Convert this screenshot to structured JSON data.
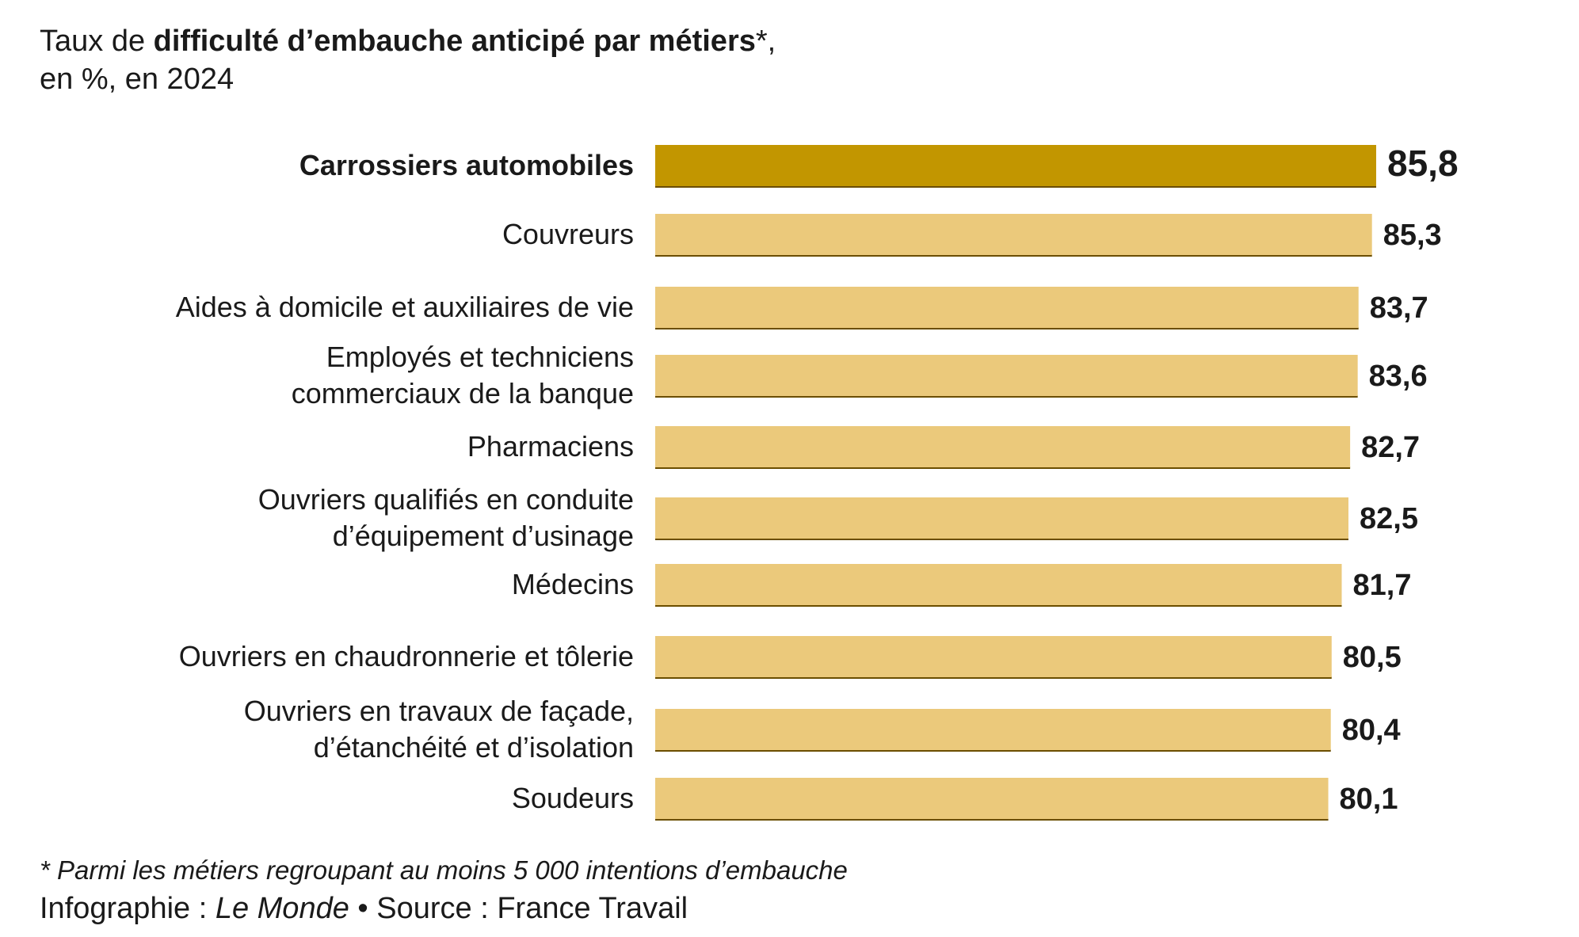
{
  "title": {
    "prefix": "Taux de ",
    "bold": "difficulté d’embauche anticipé par métiers",
    "suffix": "*,"
  },
  "subtitle": "en %, en 2024",
  "colors": {
    "highlight": "#c29600",
    "bar": "#ebc97b",
    "shadow": "#6b4e00"
  },
  "chart_data": {
    "type": "bar",
    "orientation": "horizontal",
    "highlight_index": 0,
    "categories": [
      [
        "Carrossiers automobiles"
      ],
      [
        "Couvreurs"
      ],
      [
        "Aides à domicile et auxiliaires de vie"
      ],
      [
        "Employés et techniciens",
        "commerciaux de la banque"
      ],
      [
        "Pharmaciens"
      ],
      [
        "Ouvriers qualifiés en conduite",
        "d’équipement d’usinage"
      ],
      [
        "Médecins"
      ],
      [
        "Ouvriers en chaudronnerie et tôlerie"
      ],
      [
        "Ouvriers en travaux de façade,",
        "d’étanchéité et d’isolation"
      ],
      [
        "Soudeurs"
      ]
    ],
    "values": [
      85.8,
      85.3,
      83.7,
      83.6,
      82.7,
      82.5,
      81.7,
      80.5,
      80.4,
      80.1
    ],
    "value_labels": [
      "85,8",
      "85,3",
      "83,7",
      "83,6",
      "82,7",
      "82,5",
      "81,7",
      "80,5",
      "80,4",
      "80,1"
    ],
    "xlim": [
      0,
      85.8
    ],
    "grid": false,
    "legend": "none"
  },
  "footnote": "* Parmi les métiers regroupant au moins 5 000 intentions d’embauche",
  "credit": {
    "prefix": "Infographie : ",
    "outlet": "Le Monde",
    "sep": " • ",
    "source": "Source : France Travail"
  }
}
